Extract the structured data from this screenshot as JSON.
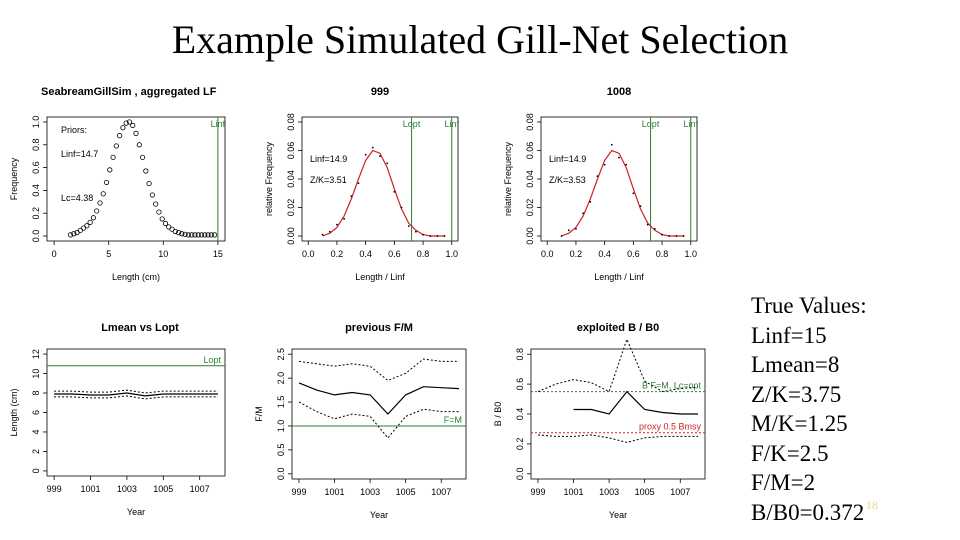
{
  "slide": {
    "title": "Example Simulated Gill-Net Selection",
    "slide_number": "18",
    "slide_number_color": "#e8d48a",
    "true_values": {
      "heading": "True Values:",
      "lines": [
        "Linf=15",
        "Lmean=8",
        "Z/K=3.75",
        "M/K=1.25",
        "F/K=2.5",
        "F/M=2",
        "B/B0=0.372"
      ]
    }
  },
  "colors": {
    "green": "#2e7d32",
    "red": "#cc2222",
    "black": "#000000"
  },
  "chart_data": [
    {
      "id": "lf",
      "type": "scatter",
      "title": "SeabreamGillSim , aggregated LF",
      "xlabel": "Length (cm)",
      "ylabel": "Frequency",
      "xlim": [
        0,
        15
      ],
      "ylim": [
        0,
        1.0
      ],
      "xticks": [
        "0",
        "5",
        "10",
        "15"
      ],
      "yticks": [
        "0.0",
        "0.2",
        "0.4",
        "0.6",
        "0.8",
        "1.0"
      ],
      "annotations": [
        "Priors:",
        "Linf=14.7",
        "Lc=4.38"
      ],
      "vlines": [
        {
          "x": 15,
          "label": "Linf",
          "color": "#2e7d32"
        }
      ],
      "x": [
        1.5,
        1.8,
        2.1,
        2.4,
        2.7,
        3.0,
        3.3,
        3.6,
        3.9,
        4.2,
        4.5,
        4.8,
        5.1,
        5.4,
        5.7,
        6.0,
        6.3,
        6.6,
        6.9,
        7.2,
        7.5,
        7.8,
        8.1,
        8.4,
        8.7,
        9.0,
        9.3,
        9.6,
        9.9,
        10.2,
        10.5,
        10.8,
        11.1,
        11.4,
        11.7,
        12.0,
        12.3,
        12.6,
        12.9,
        13.2,
        13.5,
        13.8,
        14.1,
        14.4,
        14.7
      ],
      "y": [
        0.01,
        0.02,
        0.03,
        0.05,
        0.07,
        0.09,
        0.12,
        0.16,
        0.22,
        0.29,
        0.37,
        0.47,
        0.58,
        0.69,
        0.79,
        0.88,
        0.95,
        0.99,
        1.0,
        0.97,
        0.9,
        0.8,
        0.69,
        0.57,
        0.46,
        0.36,
        0.28,
        0.21,
        0.15,
        0.11,
        0.08,
        0.06,
        0.04,
        0.03,
        0.02,
        0.015,
        0.01,
        0.01,
        0.01,
        0.01,
        0.01,
        0.01,
        0.01,
        0.01,
        0.01
      ]
    },
    {
      "id": "f999",
      "type": "line",
      "title": "999",
      "xlabel": "Length / Linf",
      "ylabel": "relative Frequency",
      "xlim": [
        0,
        1.0
      ],
      "ylim": [
        0,
        0.08
      ],
      "xticks": [
        "0.0",
        "0.2",
        "0.4",
        "0.6",
        "0.8",
        "1.0"
      ],
      "yticks": [
        "0.00",
        "0.02",
        "0.04",
        "0.06",
        "0.08"
      ],
      "annotations": [
        "Linf=14.9",
        "Z/K=3.51"
      ],
      "vlines": [
        {
          "x": 0.72,
          "label": "Lopt",
          "color": "#2e7d32"
        },
        {
          "x": 1.0,
          "label": "Linf",
          "color": "#2e7d32"
        }
      ],
      "x": [
        0.1,
        0.15,
        0.2,
        0.25,
        0.3,
        0.35,
        0.4,
        0.45,
        0.5,
        0.55,
        0.6,
        0.65,
        0.7,
        0.75,
        0.8,
        0.85,
        0.9,
        0.95
      ],
      "y": [
        0.0,
        0.002,
        0.006,
        0.014,
        0.026,
        0.04,
        0.053,
        0.06,
        0.058,
        0.048,
        0.033,
        0.019,
        0.009,
        0.004,
        0.001,
        0.0,
        0.0,
        0.0
      ],
      "points_y": [
        0.001,
        0.003,
        0.008,
        0.012,
        0.028,
        0.037,
        0.057,
        0.062,
        0.056,
        0.051,
        0.031,
        0.02,
        0.007,
        0.003,
        0.001,
        0.0,
        0.0,
        0.0
      ]
    },
    {
      "id": "f1008",
      "type": "line",
      "title": "1008",
      "xlabel": "Length / Linf",
      "ylabel": "relative Frequency",
      "xlim": [
        0,
        1.0
      ],
      "ylim": [
        0,
        0.08
      ],
      "xticks": [
        "0.0",
        "0.2",
        "0.4",
        "0.6",
        "0.8",
        "1.0"
      ],
      "yticks": [
        "0.00",
        "0.02",
        "0.04",
        "0.06",
        "0.08"
      ],
      "annotations": [
        "Linf=14.9",
        "Z/K=3.53"
      ],
      "vlines": [
        {
          "x": 0.72,
          "label": "Lopt",
          "color": "#2e7d32"
        },
        {
          "x": 1.0,
          "label": "Linf",
          "color": "#2e7d32"
        }
      ],
      "x": [
        0.1,
        0.15,
        0.2,
        0.25,
        0.3,
        0.35,
        0.4,
        0.45,
        0.5,
        0.55,
        0.6,
        0.65,
        0.7,
        0.75,
        0.8,
        0.85,
        0.9,
        0.95
      ],
      "y": [
        0.0,
        0.002,
        0.006,
        0.014,
        0.026,
        0.04,
        0.053,
        0.06,
        0.058,
        0.048,
        0.033,
        0.019,
        0.009,
        0.004,
        0.001,
        0.0,
        0.0,
        0.0
      ],
      "points_y": [
        0.0,
        0.004,
        0.005,
        0.016,
        0.024,
        0.042,
        0.05,
        0.064,
        0.055,
        0.05,
        0.03,
        0.021,
        0.008,
        0.005,
        0.001,
        0.0,
        0.0,
        0.0
      ]
    },
    {
      "id": "lmean",
      "type": "line",
      "title": "Lmean vs Lopt",
      "xlabel": "Year",
      "ylabel": "Length (cm)",
      "xlim": [
        999,
        1008
      ],
      "ylim": [
        0,
        12
      ],
      "xticks": [
        "999",
        "1001",
        "1003",
        "1005",
        "1007"
      ],
      "yticks": [
        "0",
        "2",
        "4",
        "6",
        "8",
        "10",
        "12"
      ],
      "hline": {
        "y": 10.8,
        "label": "Lopt",
        "color": "#2e7d32"
      },
      "x": [
        999,
        1000,
        1001,
        1002,
        1003,
        1004,
        1005,
        1006,
        1007,
        1008
      ],
      "series": [
        {
          "values": [
            7.9,
            7.9,
            7.8,
            7.8,
            8.0,
            7.7,
            7.9,
            7.9,
            7.9,
            7.9
          ],
          "style": "solid"
        },
        {
          "values": [
            8.2,
            8.2,
            8.1,
            8.1,
            8.3,
            8.0,
            8.2,
            8.2,
            8.2,
            8.2
          ],
          "style": "dashed"
        },
        {
          "values": [
            7.6,
            7.6,
            7.5,
            7.5,
            7.7,
            7.4,
            7.6,
            7.6,
            7.6,
            7.6
          ],
          "style": "dashed"
        }
      ]
    },
    {
      "id": "fm",
      "type": "line",
      "title": "previous F/M",
      "xlabel": "Year",
      "ylabel": "F/M",
      "xlim": [
        999,
        1008
      ],
      "ylim": [
        0,
        2.5
      ],
      "xticks": [
        "999",
        "1001",
        "1003",
        "1005",
        "1007"
      ],
      "yticks": [
        "0.0",
        "0.5",
        "1.0",
        "1.5",
        "2.0",
        "2.5"
      ],
      "hline": {
        "y": 1.0,
        "label": "F=M",
        "color": "#2e7d32"
      },
      "x": [
        999,
        1000,
        1001,
        1002,
        1003,
        1004,
        1005,
        1006,
        1007,
        1008
      ],
      "series": [
        {
          "values": [
            1.9,
            1.75,
            1.65,
            1.7,
            1.65,
            1.25,
            1.65,
            1.82,
            1.8,
            1.78
          ],
          "style": "solid"
        },
        {
          "values": [
            2.35,
            2.3,
            2.25,
            2.3,
            2.25,
            1.95,
            2.1,
            2.4,
            2.35,
            2.35
          ],
          "style": "dashed"
        },
        {
          "values": [
            1.5,
            1.3,
            1.15,
            1.25,
            1.2,
            0.75,
            1.2,
            1.35,
            1.3,
            1.3
          ],
          "style": "dashed"
        }
      ]
    },
    {
      "id": "bb0",
      "type": "line",
      "title": "exploited B / B0",
      "xlabel": "Year",
      "ylabel": "B / B0",
      "xlim": [
        999,
        1008
      ],
      "ylim": [
        0,
        0.8
      ],
      "xticks": [
        "999",
        "1001",
        "1003",
        "1005",
        "1007"
      ],
      "yticks": [
        "0.0",
        "0.2",
        "0.4",
        "0.6",
        "0.8"
      ],
      "hlines": [
        {
          "y": 0.55,
          "label": "B F=M, Lc=opt",
          "color": "#2e7d32",
          "style": "dashed"
        },
        {
          "y": 0.275,
          "label": "proxy 0.5 Bmsy",
          "color": "#cc2222",
          "style": "dashed"
        }
      ],
      "x": [
        999,
        1000,
        1001,
        1002,
        1003,
        1004,
        1005,
        1006,
        1007,
        1008
      ],
      "series": [
        {
          "values": [
            0.41,
            null,
            0.43,
            0.43,
            0.4,
            0.55,
            0.43,
            0.41,
            0.4,
            0.4
          ],
          "style": "solid"
        },
        {
          "values": [
            0.55,
            0.6,
            0.63,
            0.61,
            0.55,
            0.9,
            0.62,
            0.55,
            0.57,
            0.58
          ],
          "style": "dashed"
        },
        {
          "values": [
            0.26,
            0.25,
            0.25,
            0.26,
            0.24,
            0.21,
            0.24,
            0.25,
            0.25,
            0.25
          ],
          "style": "dashed"
        }
      ]
    }
  ]
}
